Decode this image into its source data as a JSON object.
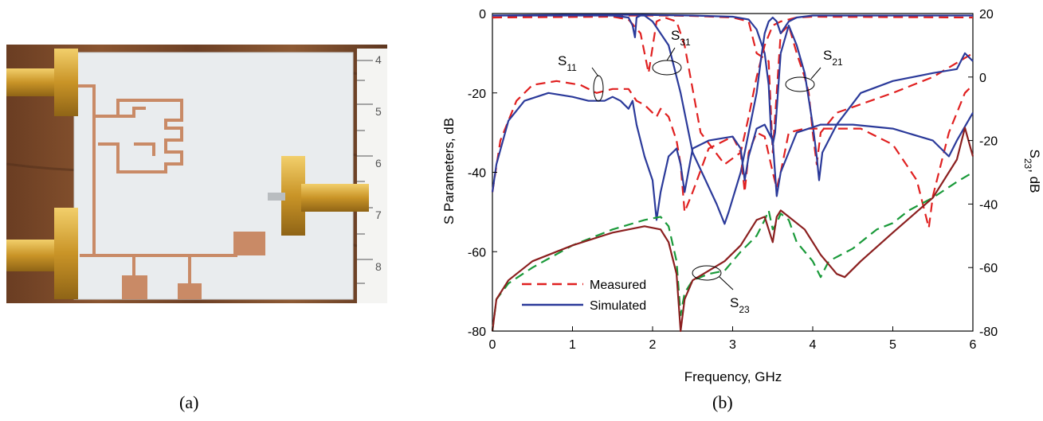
{
  "captions": {
    "a": "(a)",
    "b": "(b)"
  },
  "photo": {
    "description_icon": "pcb-photo",
    "ruler_marks": [
      "4",
      "5",
      "6",
      "7",
      "8"
    ]
  },
  "colors": {
    "measured_red": "#e02020",
    "simulated_blue": "#2b3a9a",
    "measured_s23_green": "#1a9a3a",
    "simulated_s23_brown": "#8b1f1f",
    "copper": "#c98a66",
    "board": "#e9ecee",
    "wood": "#7a4a2a",
    "brass": "#d2a032"
  },
  "chart_data": {
    "type": "line",
    "xlabel": "Frequency, GHz",
    "ylabel": "S Parameters, dB",
    "y2label": "S23, dB",
    "xlim": [
      0,
      6
    ],
    "ylim": [
      -80,
      0
    ],
    "y2lim": [
      -80,
      20
    ],
    "xticks": [
      0,
      1,
      2,
      3,
      4,
      5,
      6
    ],
    "yticks": [
      -80,
      -60,
      -40,
      -20,
      0
    ],
    "y2ticks": [
      -80,
      -60,
      -40,
      -20,
      0,
      20
    ],
    "grid": false,
    "legend": {
      "position": "bottom-left",
      "entries": [
        {
          "label": "Measured",
          "style": "dashed",
          "color": "#e02020"
        },
        {
          "label": "Simulated",
          "style": "solid",
          "color": "#2b3a9a"
        }
      ]
    },
    "annotations": [
      {
        "label": "S11",
        "text_main": "S",
        "text_sub": "11",
        "x": 1.3,
        "y": -20
      },
      {
        "label": "S31",
        "text_main": "S",
        "text_sub": "31",
        "x": 2.2,
        "y": -17
      },
      {
        "label": "S21",
        "text_main": "S",
        "text_sub": "21",
        "x": 3.9,
        "y": -22
      },
      {
        "label": "S23",
        "text_main": "S",
        "text_sub": "23",
        "x": 2.7,
        "y": -65
      }
    ],
    "series": [
      {
        "name": "S21 Measured",
        "axis": "left",
        "color": "#e02020",
        "dash": true,
        "x": [
          0,
          1,
          1.8,
          2.1,
          2.5,
          3.0,
          3.2,
          3.3,
          3.45,
          3.5,
          3.55,
          3.6,
          3.7,
          3.8,
          3.9,
          3.95,
          4.0,
          4.05,
          4.1,
          4.3,
          5,
          5.5,
          6
        ],
        "y": [
          -1,
          -0.6,
          -0.5,
          -0.5,
          -0.6,
          -1,
          -2,
          -10,
          -12,
          -35,
          -20,
          -5,
          -3,
          -10,
          -16,
          -20,
          -30,
          -38,
          -30,
          -25,
          -20,
          -16,
          -10
        ]
      },
      {
        "name": "S21 Simulated",
        "axis": "left",
        "color": "#2b3a9a",
        "dash": false,
        "x": [
          0,
          1,
          1.8,
          2.1,
          2.5,
          3.0,
          3.2,
          3.3,
          3.4,
          3.45,
          3.48,
          3.5,
          3.53,
          3.6,
          3.7,
          3.8,
          3.9,
          4.0,
          4.05,
          4.08,
          4.12,
          4.3,
          4.6,
          5,
          5.5,
          5.8,
          5.9,
          6
        ],
        "y": [
          -0.5,
          -0.3,
          -0.3,
          -0.4,
          -0.5,
          -0.8,
          -1.5,
          -4,
          -10,
          -18,
          -30,
          -33,
          -30,
          -10,
          -3,
          -8,
          -15,
          -28,
          -36,
          -42,
          -35,
          -28,
          -20,
          -17,
          -15,
          -14,
          -10,
          -12
        ]
      },
      {
        "name": "S31 Measured",
        "axis": "left",
        "color": "#e02020",
        "dash": true,
        "x": [
          0,
          1.5,
          1.7,
          1.85,
          1.95,
          2.05,
          2.15,
          2.3,
          2.4,
          2.6,
          2.9,
          3.1,
          3.2,
          3.3,
          3.4,
          3.5,
          3.6,
          3.8,
          4,
          6
        ],
        "y": [
          -1,
          -0.8,
          -1.5,
          -5,
          -15,
          -2,
          -1,
          -2,
          -8,
          -30,
          -38,
          -35,
          -26,
          -16,
          -8,
          -3,
          -2,
          -1,
          -0.8,
          -1
        ]
      },
      {
        "name": "S31 Simulated",
        "axis": "left",
        "color": "#2b3a9a",
        "dash": false,
        "x": [
          0,
          1.5,
          1.7,
          1.75,
          1.78,
          1.8,
          1.85,
          1.9,
          2.0,
          2.2,
          2.35,
          2.5,
          2.8,
          2.9,
          2.95,
          3.1,
          3.2,
          3.3,
          3.35,
          3.4,
          3.45,
          3.5,
          3.55,
          3.6,
          3.7,
          3.8,
          4,
          6
        ],
        "y": [
          -0.5,
          -0.5,
          -1,
          -3,
          -6,
          -1,
          -0.5,
          -0.5,
          -2,
          -8,
          -20,
          -35,
          -48,
          -53,
          -50,
          -40,
          -30,
          -20,
          -12,
          -5,
          -2,
          -1,
          -2,
          -5,
          -2,
          -1,
          -0.5,
          -0.5
        ]
      },
      {
        "name": "S11 Measured",
        "axis": "left",
        "color": "#e02020",
        "dash": true,
        "x": [
          0,
          0.1,
          0.3,
          0.5,
          0.8,
          1.1,
          1.3,
          1.5,
          1.7,
          1.8,
          1.9,
          2.0,
          2.05,
          2.1,
          2.2,
          2.3,
          2.35,
          2.4,
          2.5,
          2.7,
          3.0,
          3.1,
          3.15,
          3.2,
          3.3,
          3.4,
          3.5,
          3.55,
          3.6,
          3.7,
          3.9,
          4.2,
          4.6,
          5.0,
          5.3,
          5.4,
          5.45,
          5.5,
          5.7,
          5.9,
          6
        ],
        "y": [
          -45,
          -32,
          -22,
          -18,
          -17,
          -18,
          -20,
          -19,
          -19,
          -22,
          -23,
          -25,
          -26,
          -24,
          -26,
          -32,
          -38,
          -50,
          -45,
          -34,
          -31,
          -35,
          -45,
          -35,
          -30,
          -31,
          -40,
          -44,
          -40,
          -30,
          -29,
          -29,
          -29,
          -33,
          -42,
          -50,
          -54,
          -46,
          -30,
          -20,
          -18
        ]
      },
      {
        "name": "S11 Simulated",
        "axis": "left",
        "color": "#2b3a9a",
        "dash": false,
        "x": [
          0,
          0.05,
          0.2,
          0.4,
          0.7,
          1.0,
          1.2,
          1.4,
          1.5,
          1.6,
          1.7,
          1.75,
          1.8,
          1.9,
          2.0,
          2.05,
          2.1,
          2.2,
          2.3,
          2.35,
          2.4,
          2.5,
          2.7,
          3.0,
          3.1,
          3.15,
          3.2,
          3.3,
          3.4,
          3.5,
          3.55,
          3.6,
          3.8,
          4.1,
          4.5,
          5.0,
          5.5,
          5.7,
          5.8,
          6
        ],
        "y": [
          -45,
          -38,
          -27,
          -22,
          -20,
          -21,
          -22,
          -22,
          -21,
          -22,
          -24,
          -22,
          -28,
          -36,
          -42,
          -52,
          -45,
          -36,
          -34,
          -38,
          -45,
          -34,
          -32,
          -31,
          -34,
          -42,
          -36,
          -29,
          -28,
          -32,
          -46,
          -40,
          -30,
          -28,
          -28,
          -29,
          -32,
          -36,
          -32,
          -25
        ]
      },
      {
        "name": "S23 Measured",
        "axis": "right",
        "color": "#1a9a3a",
        "dash": true,
        "x": [
          0,
          0.05,
          0.2,
          0.5,
          1.0,
          1.5,
          1.9,
          2.1,
          2.2,
          2.3,
          2.35,
          2.4,
          2.5,
          2.7,
          2.9,
          3.1,
          3.3,
          3.4,
          3.45,
          3.5,
          3.55,
          3.6,
          3.7,
          3.8,
          4.0,
          4.1,
          4.2,
          4.5,
          4.8,
          5.0,
          5.2,
          5.5,
          5.8,
          6
        ],
        "y": [
          -80,
          -70,
          -65,
          -60,
          -53,
          -48,
          -45,
          -44,
          -47,
          -58,
          -75,
          -68,
          -64,
          -62,
          -61,
          -55,
          -50,
          -45,
          -42,
          -48,
          -46,
          -43,
          -45,
          -52,
          -58,
          -63,
          -58,
          -54,
          -48,
          -46,
          -42,
          -38,
          -33,
          -30
        ]
      },
      {
        "name": "S23 Simulated",
        "axis": "right",
        "color": "#8b1f1f",
        "dash": false,
        "x": [
          0,
          0.05,
          0.2,
          0.5,
          1.0,
          1.5,
          1.9,
          2.1,
          2.2,
          2.3,
          2.35,
          2.4,
          2.5,
          2.7,
          2.9,
          3.1,
          3.3,
          3.4,
          3.45,
          3.5,
          3.55,
          3.6,
          3.7,
          3.9,
          4.1,
          4.3,
          4.4,
          4.6,
          5.0,
          5.5,
          5.8,
          5.9,
          6
        ],
        "y": [
          -80,
          -70,
          -64,
          -58,
          -53,
          -49,
          -47,
          -48,
          -52,
          -62,
          -80,
          -70,
          -64,
          -61,
          -58,
          -53,
          -45,
          -44,
          -48,
          -52,
          -44,
          -42,
          -44,
          -48,
          -56,
          -62,
          -63,
          -58,
          -49,
          -38,
          -26,
          -16,
          -25
        ]
      }
    ]
  }
}
